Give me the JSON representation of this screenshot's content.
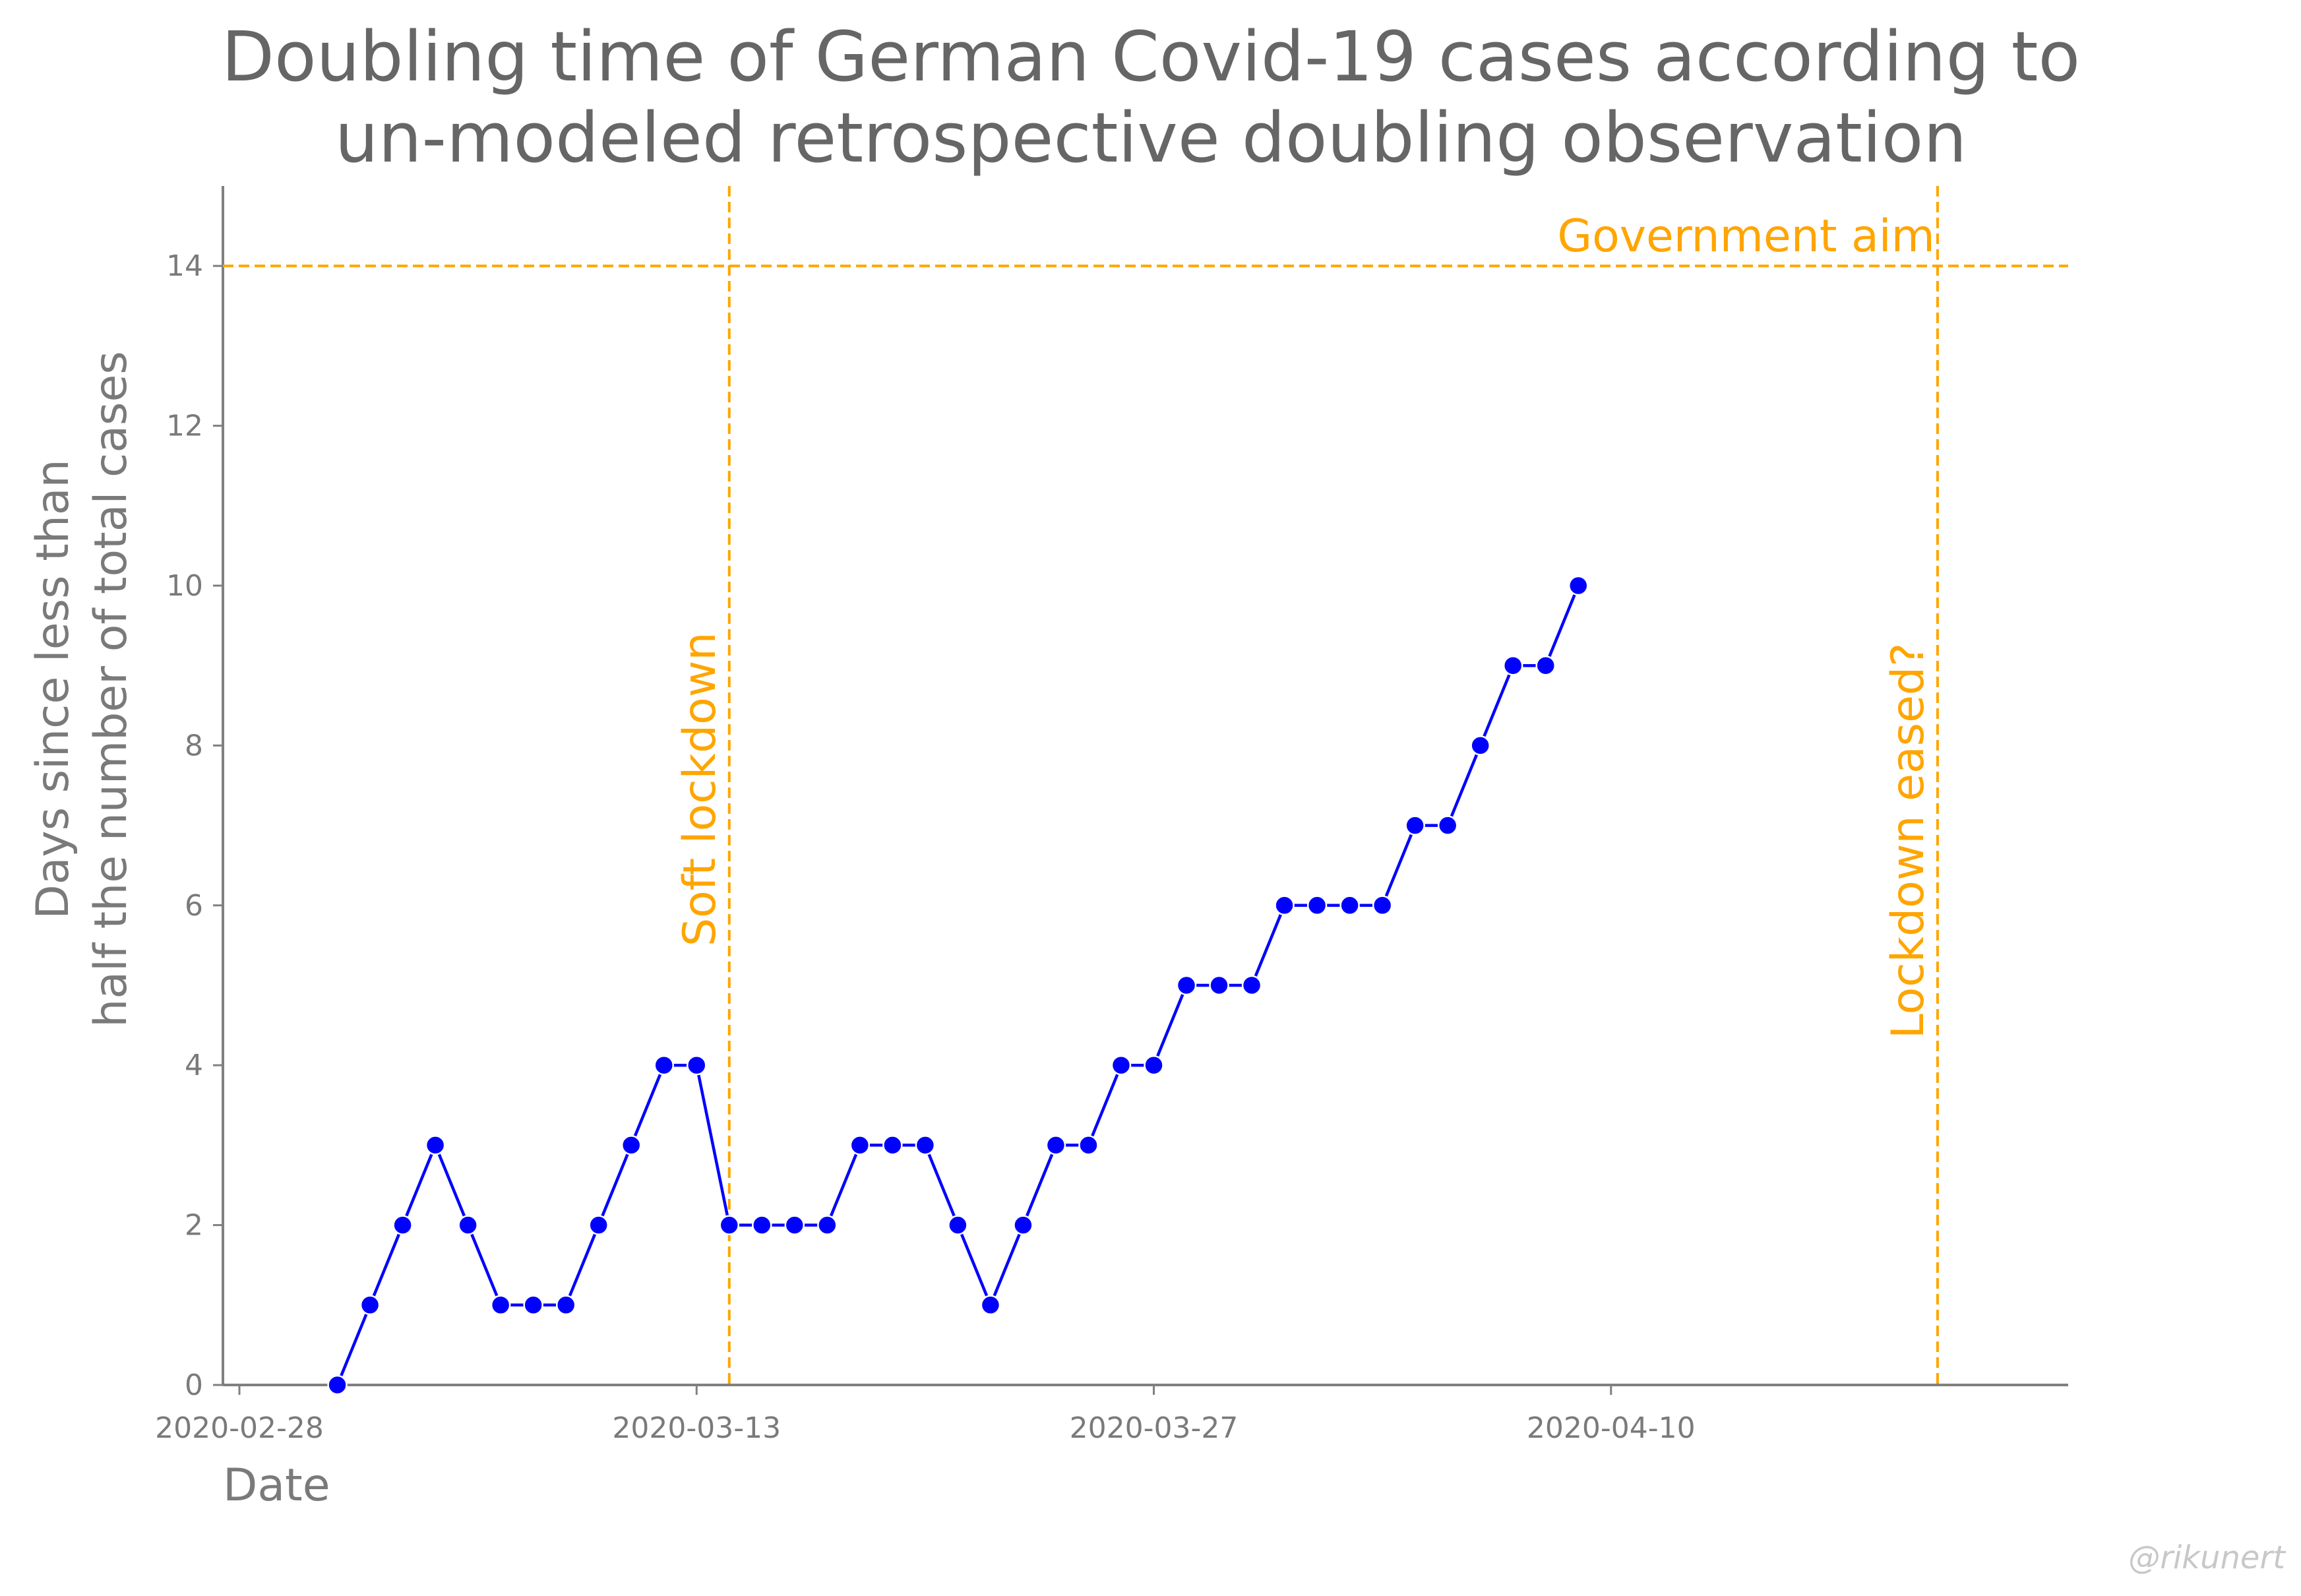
{
  "chart_data": {
    "type": "line",
    "title": [
      "Doubling time of German Covid-19 cases according to",
      "un-modeled retrospective doubling observation"
    ],
    "xlabel": "Date",
    "ylabel": [
      "Days since less than",
      "half the number of total cases"
    ],
    "x_start": "2020-02-28",
    "xlim": [
      "2020-02-28",
      "2020-04-24"
    ],
    "ylim": [
      0,
      15
    ],
    "x_ticks": [
      "2020-02-28",
      "2020-03-13",
      "2020-03-27",
      "2020-04-10"
    ],
    "y_ticks": [
      0,
      2,
      4,
      6,
      8,
      10,
      12,
      14
    ],
    "grid": false,
    "series": [
      {
        "color": "#0000ff",
        "points": [
          {
            "x": "2020-03-02",
            "y": 0
          },
          {
            "x": "2020-03-03",
            "y": 1
          },
          {
            "x": "2020-03-04",
            "y": 2
          },
          {
            "x": "2020-03-05",
            "y": 3
          },
          {
            "x": "2020-03-06",
            "y": 2
          },
          {
            "x": "2020-03-07",
            "y": 1
          },
          {
            "x": "2020-03-08",
            "y": 1
          },
          {
            "x": "2020-03-09",
            "y": 1
          },
          {
            "x": "2020-03-10",
            "y": 2
          },
          {
            "x": "2020-03-11",
            "y": 3
          },
          {
            "x": "2020-03-12",
            "y": 4
          },
          {
            "x": "2020-03-13",
            "y": 4
          },
          {
            "x": "2020-03-14",
            "y": 2
          },
          {
            "x": "2020-03-15",
            "y": 2
          },
          {
            "x": "2020-03-16",
            "y": 2
          },
          {
            "x": "2020-03-17",
            "y": 2
          },
          {
            "x": "2020-03-18",
            "y": 3
          },
          {
            "x": "2020-03-19",
            "y": 3
          },
          {
            "x": "2020-03-20",
            "y": 3
          },
          {
            "x": "2020-03-21",
            "y": 2
          },
          {
            "x": "2020-03-22",
            "y": 1
          },
          {
            "x": "2020-03-23",
            "y": 2
          },
          {
            "x": "2020-03-24",
            "y": 3
          },
          {
            "x": "2020-03-25",
            "y": 3
          },
          {
            "x": "2020-03-26",
            "y": 4
          },
          {
            "x": "2020-03-27",
            "y": 4
          },
          {
            "x": "2020-03-28",
            "y": 5
          },
          {
            "x": "2020-03-29",
            "y": 5
          },
          {
            "x": "2020-03-30",
            "y": 5
          },
          {
            "x": "2020-03-31",
            "y": 6
          },
          {
            "x": "2020-04-01",
            "y": 6
          },
          {
            "x": "2020-04-02",
            "y": 6
          },
          {
            "x": "2020-04-03",
            "y": 6
          },
          {
            "x": "2020-04-04",
            "y": 7
          },
          {
            "x": "2020-04-05",
            "y": 7
          },
          {
            "x": "2020-04-06",
            "y": 8
          },
          {
            "x": "2020-04-07",
            "y": 9
          },
          {
            "x": "2020-04-08",
            "y": 9
          },
          {
            "x": "2020-04-09",
            "y": 10
          }
        ]
      }
    ],
    "reference_lines": [
      {
        "orientation": "horizontal",
        "y": 14,
        "label": "Government aim",
        "color": "#ffa500",
        "style": "dashed"
      },
      {
        "orientation": "vertical",
        "x": "2020-03-14",
        "label": "Soft lockdown",
        "color": "#ffa500",
        "style": "dashed"
      },
      {
        "orientation": "vertical",
        "x": "2020-04-20",
        "label": "Lockdown eased?",
        "color": "#ffa500",
        "style": "dashed"
      }
    ]
  },
  "credit": "@rikunert"
}
